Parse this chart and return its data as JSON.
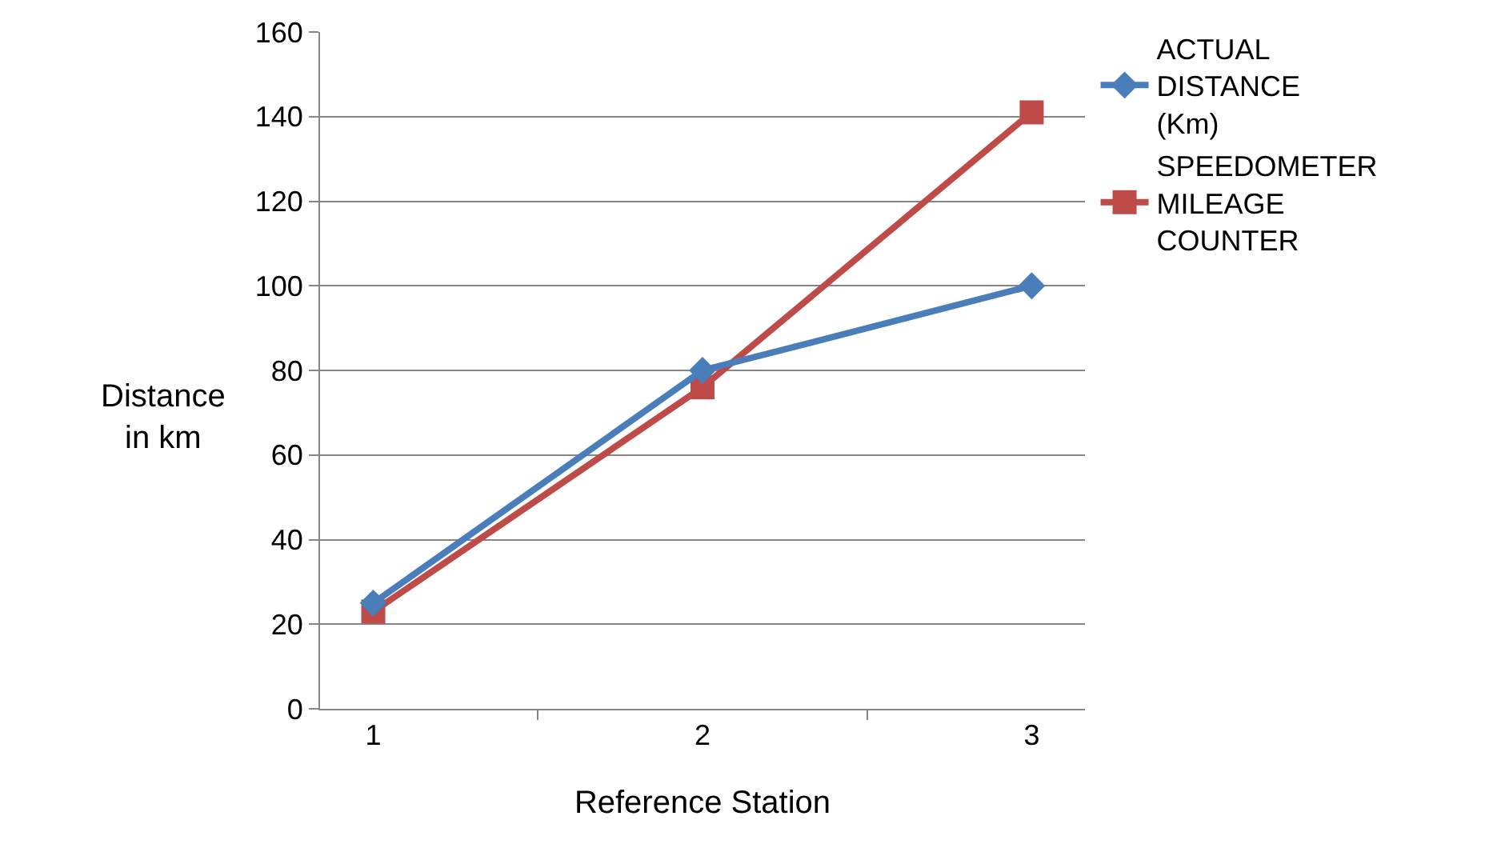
{
  "chart_data": {
    "type": "line",
    "xlabel": "Reference Station",
    "ylabel": "Distance in km",
    "categories": [
      "1",
      "2",
      "3"
    ],
    "series": [
      {
        "name": "ACTUAL DISTANCE (Km)",
        "color": "#4a7ebb",
        "values": [
          25,
          80,
          100
        ],
        "marker": "diamond"
      },
      {
        "name": "SPEEDOMETER MILEAGE COUNTER",
        "color": "#be4b48",
        "values": [
          23,
          76,
          141
        ],
        "marker": "square"
      }
    ],
    "ylim": [
      0,
      160
    ],
    "yticks": [
      0,
      20,
      40,
      60,
      80,
      100,
      120,
      140,
      160
    ],
    "grid": "y",
    "legend": "top right",
    "line_style": "solid"
  }
}
